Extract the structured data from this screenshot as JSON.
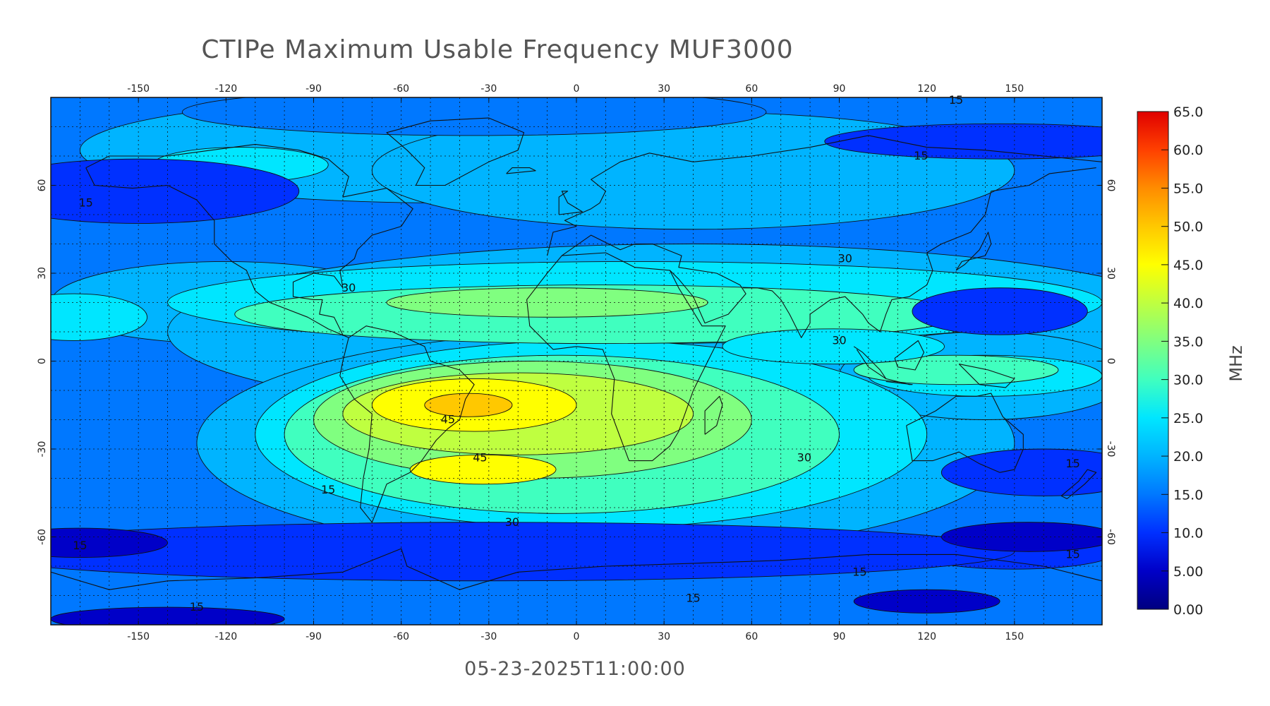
{
  "title": "CTIPe Maximum Usable Frequency MUF3000",
  "timestamp": "05-23-2025T11:00:00",
  "map": {
    "lon_range": [
      -180,
      180
    ],
    "lat_range": [
      -90,
      90
    ],
    "lon_ticks": [
      "-150",
      "-120",
      "-90",
      "-60",
      "-30",
      "0",
      "30",
      "60",
      "90",
      "120",
      "150"
    ],
    "lat_ticks": [
      "60",
      "30",
      "0",
      "-30",
      "-60"
    ],
    "grid": "dotted 10 degree",
    "contour_interval_labels": [
      "15",
      "30",
      "45"
    ],
    "peak_region": "South Atlantic near 35W 15S"
  },
  "colorbar": {
    "unit": "MHz",
    "min": 0.0,
    "max": 65.0,
    "ticks": [
      "65.0",
      "60.0",
      "55.0",
      "50.0",
      "45.0",
      "40.0",
      "35.0",
      "30.0",
      "25.0",
      "20.0",
      "15.0",
      "10.0",
      "5.00",
      "0.00"
    ],
    "colors": [
      "#000080",
      "#0000c8",
      "#0030ff",
      "#0078ff",
      "#00b4ff",
      "#00e6ff",
      "#40ffbf",
      "#80ff80",
      "#bfff40",
      "#ffff00",
      "#ffc800",
      "#ff8c00",
      "#ff4000",
      "#e00000"
    ]
  },
  "contour_labels": [
    {
      "text": "30",
      "lon": -78,
      "lat": 25
    },
    {
      "text": "30",
      "lon": 92,
      "lat": 35
    },
    {
      "text": "30",
      "lon": 90,
      "lat": 7
    },
    {
      "text": "30",
      "lon": 78,
      "lat": -33
    },
    {
      "text": "30",
      "lon": -22,
      "lat": -55
    },
    {
      "text": "45",
      "lon": -44,
      "lat": -20
    },
    {
      "text": "45",
      "lon": -33,
      "lat": -33
    },
    {
      "text": "15",
      "lon": -168,
      "lat": 54
    },
    {
      "text": "15",
      "lon": -85,
      "lat": -44
    },
    {
      "text": "15",
      "lon": -170,
      "lat": -63
    },
    {
      "text": "15",
      "lon": 97,
      "lat": -72
    },
    {
      "text": "15",
      "lon": 170,
      "lat": -66
    },
    {
      "text": "15",
      "lon": 170,
      "lat": -35
    },
    {
      "text": "15",
      "lon": 40,
      "lat": -81
    },
    {
      "text": "15",
      "lon": -130,
      "lat": -84
    },
    {
      "text": "15",
      "lon": 118,
      "lat": 70
    },
    {
      "text": "15",
      "lon": 130,
      "lat": 89
    }
  ]
}
